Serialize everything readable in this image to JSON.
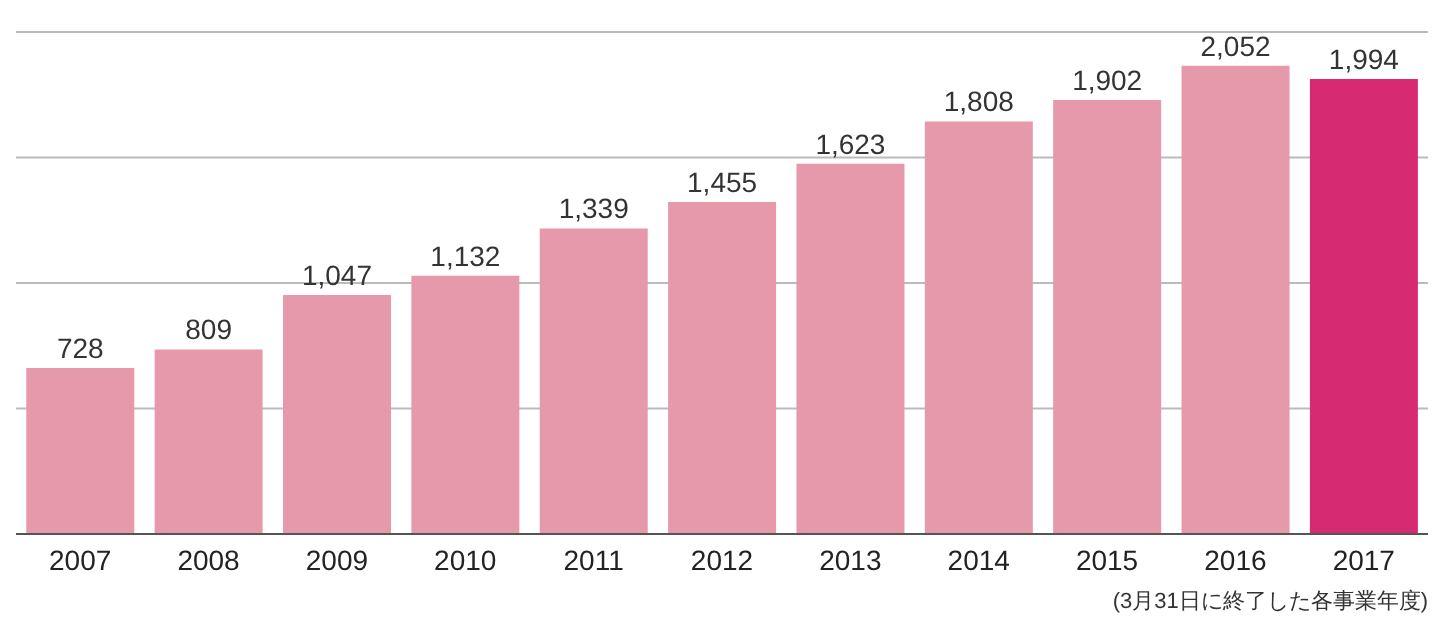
{
  "chart_data": {
    "type": "bar",
    "categories": [
      "2007",
      "2008",
      "2009",
      "2010",
      "2011",
      "2012",
      "2013",
      "2014",
      "2015",
      "2016",
      "2017"
    ],
    "values": [
      728,
      809,
      1047,
      1132,
      1339,
      1455,
      1623,
      1808,
      1902,
      2052,
      1994
    ],
    "colors": [
      "#e699ab",
      "#e699ab",
      "#e699ab",
      "#e699ab",
      "#e699ab",
      "#e699ab",
      "#e699ab",
      "#e699ab",
      "#e699ab",
      "#e699ab",
      "#d62a73"
    ],
    "value_labels": [
      "728",
      "809",
      "1,047",
      "1,132",
      "1,339",
      "1,455",
      "1,623",
      "1,808",
      "1,902",
      "2,052",
      "1,994"
    ],
    "grid": "y",
    "tick_labels": "x",
    "annotations": [
      "(3月31日に終了した各事業年度)"
    ]
  }
}
